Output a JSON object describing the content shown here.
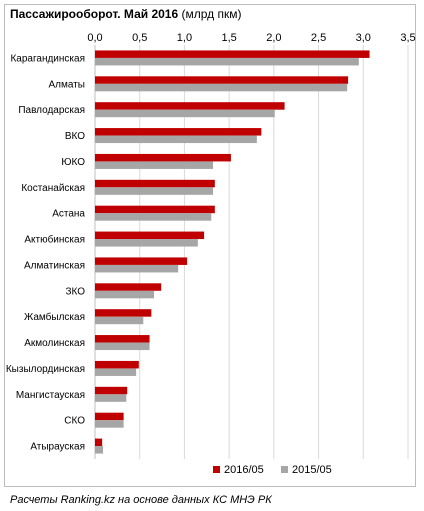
{
  "title": {
    "main": "Пассажирооборот.  Май 2016",
    "unit": "(млрд пкм)"
  },
  "source": "Расчеты Ranking.kz на основе данных КС МНЭ РК",
  "colors": {
    "series_2016": "#c00000",
    "series_2015": "#a6a6a6",
    "grid": "#d9d9d9",
    "axis": "#bfbfbf"
  },
  "chart_data": {
    "type": "bar",
    "orientation": "horizontal",
    "title": "Пассажирооборот.  Май 2016 (млрд пкм)",
    "categories": [
      "Карагандинская",
      "Алматы",
      "Павлодарская",
      "ВКО",
      "ЮКО",
      "Костанайская",
      "Астана",
      "Актюбинская",
      "Алматинская",
      "ЗКО",
      "Жамбылская",
      "Акмолинская",
      "Кызылординская",
      "Мангистауская",
      "СКО",
      "Атырауская"
    ],
    "series": [
      {
        "name": "2016/05",
        "color": "#c00000",
        "values": [
          3.07,
          2.83,
          2.12,
          1.86,
          1.52,
          1.34,
          1.34,
          1.22,
          1.03,
          0.74,
          0.63,
          0.61,
          0.49,
          0.36,
          0.32,
          0.08
        ]
      },
      {
        "name": "2015/05",
        "color": "#a6a6a6",
        "values": [
          2.95,
          2.82,
          2.01,
          1.81,
          1.32,
          1.32,
          1.3,
          1.15,
          0.93,
          0.66,
          0.54,
          0.61,
          0.46,
          0.35,
          0.32,
          0.09
        ]
      }
    ],
    "xlim": [
      0,
      3.5
    ],
    "xticks": [
      "0,0",
      "0,5",
      "1,0",
      "1,5",
      "2,0",
      "2,5",
      "3,0",
      "3,5"
    ],
    "xtick_values": [
      0,
      0.5,
      1.0,
      1.5,
      2.0,
      2.5,
      3.0,
      3.5
    ],
    "xaxis_position": "top",
    "grid": true,
    "legend_position": "bottom-right"
  }
}
